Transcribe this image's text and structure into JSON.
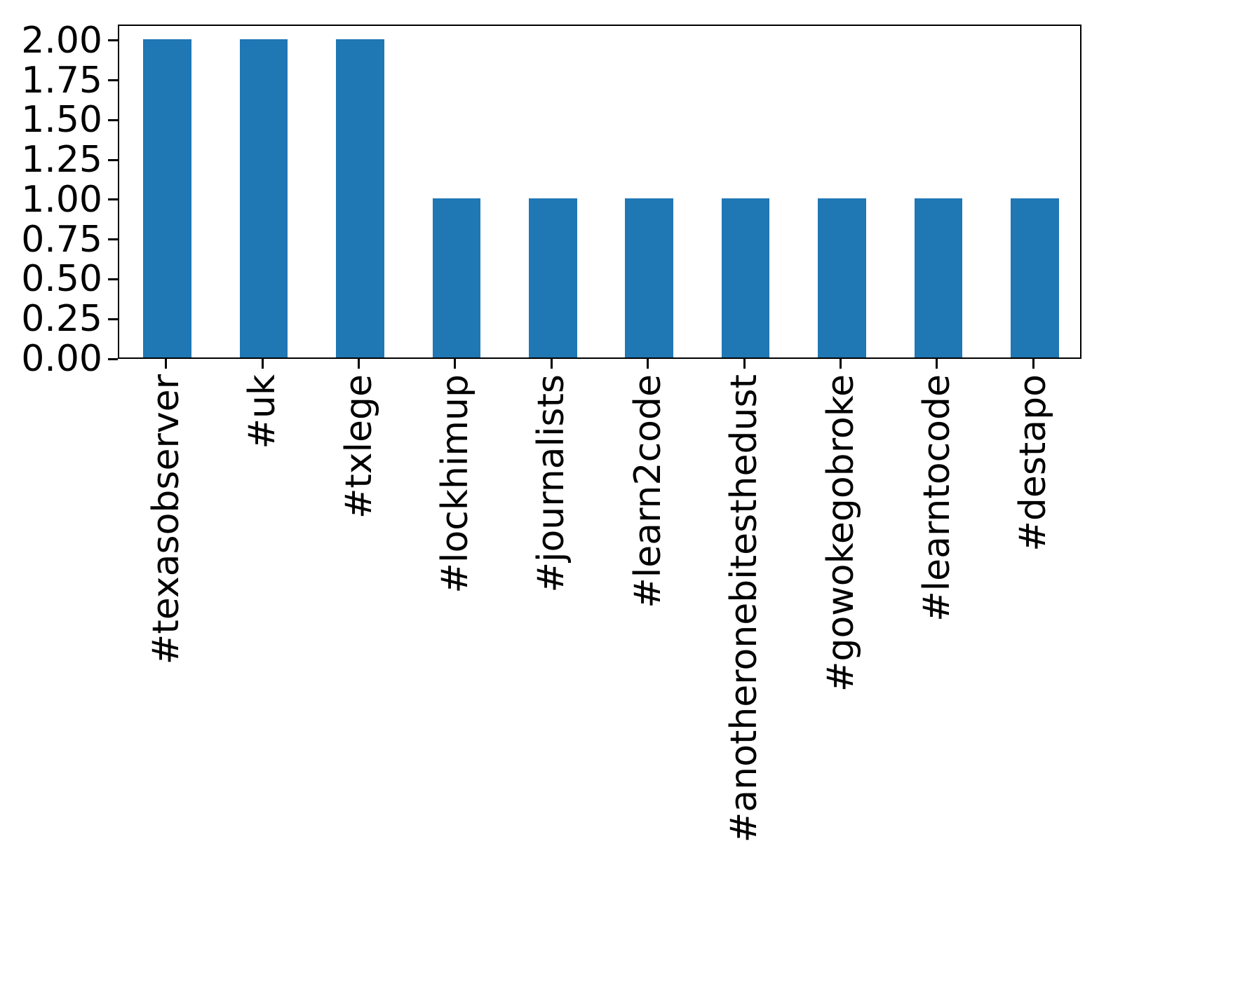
{
  "chart_data": {
    "type": "bar",
    "title": "",
    "xlabel": "",
    "ylabel": "",
    "categories": [
      "#texasobserver",
      "#uk",
      "#txlege",
      "#lockhimup",
      "#journalists",
      "#learn2code",
      "#anotheronebitesthedust",
      "#gowokegobroke",
      "#learntocode",
      "#destapo"
    ],
    "values": [
      2,
      2,
      2,
      1,
      1,
      1,
      1,
      1,
      1,
      1
    ],
    "ylim": [
      0,
      2.1
    ],
    "ytick_labels": [
      "2.00",
      "1.75",
      "1.50",
      "1.25",
      "1.00",
      "0.75",
      "0.50",
      "0.25",
      "0.00"
    ],
    "ytick_values": [
      2.0,
      1.75,
      1.5,
      1.25,
      1.0,
      0.75,
      0.5,
      0.25,
      0.0
    ],
    "x_tick_rotation": 90,
    "bar_color": "#1f77b4",
    "axis_color": "#000000",
    "background_color": "#ffffff",
    "grid": false,
    "legend": null
  }
}
